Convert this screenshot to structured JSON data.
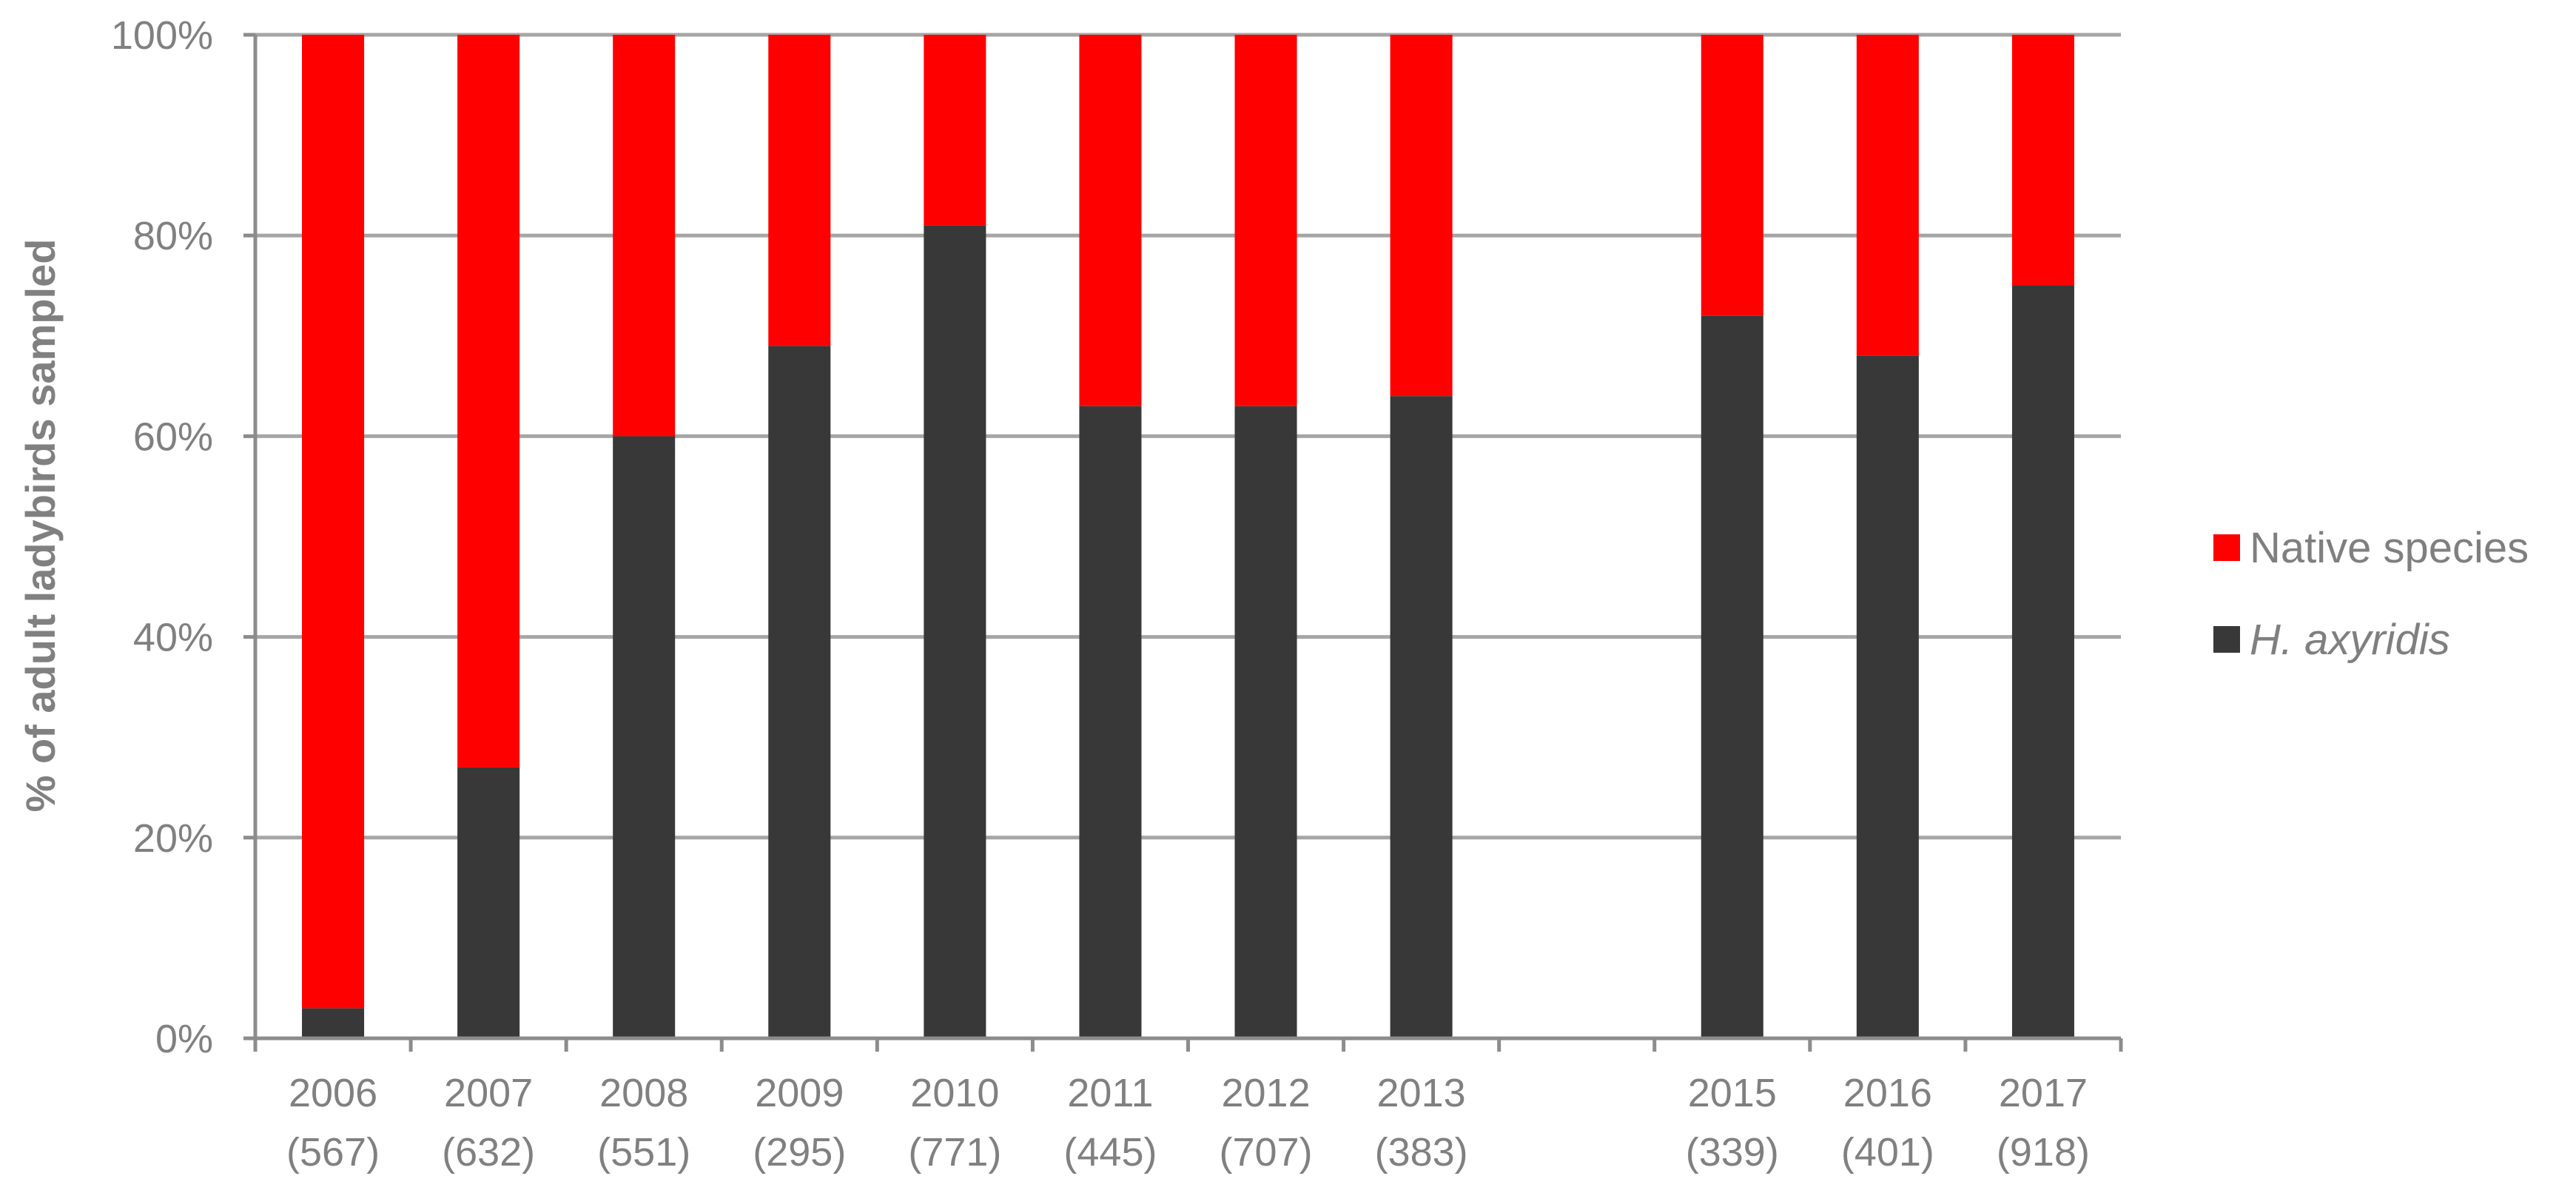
{
  "chart_data": {
    "type": "bar",
    "stacked": true,
    "percent": true,
    "ylabel": "% of adult ladybirds sampled",
    "ylim": [
      0,
      100
    ],
    "yticks": [
      "0%",
      "20%",
      "40%",
      "60%",
      "80%",
      "100%"
    ],
    "grid": true,
    "legend_position": "right",
    "categories": [
      {
        "year": "2006",
        "n": "(567)"
      },
      {
        "year": "2007",
        "n": "(632)"
      },
      {
        "year": "2008",
        "n": "(551)"
      },
      {
        "year": "2009",
        "n": "(295)"
      },
      {
        "year": "2010",
        "n": "(771)"
      },
      {
        "year": "2011",
        "n": "(445)"
      },
      {
        "year": "2012",
        "n": "(707)"
      },
      {
        "year": "2013",
        "n": "(383)"
      },
      {
        "year": "",
        "n": ""
      },
      {
        "year": "2015",
        "n": "(339)"
      },
      {
        "year": "2016",
        "n": "(401)"
      },
      {
        "year": "2017",
        "n": "(918)"
      }
    ],
    "series": [
      {
        "name": "H. axyridis",
        "color": "#383838",
        "values": [
          3,
          27,
          60,
          69,
          81,
          63,
          63,
          64,
          null,
          72,
          68,
          75
        ]
      },
      {
        "name": "Native species",
        "color": "#ff0000",
        "values": [
          97,
          73,
          40,
          31,
          19,
          37,
          37,
          36,
          null,
          28,
          32,
          25
        ]
      }
    ]
  }
}
